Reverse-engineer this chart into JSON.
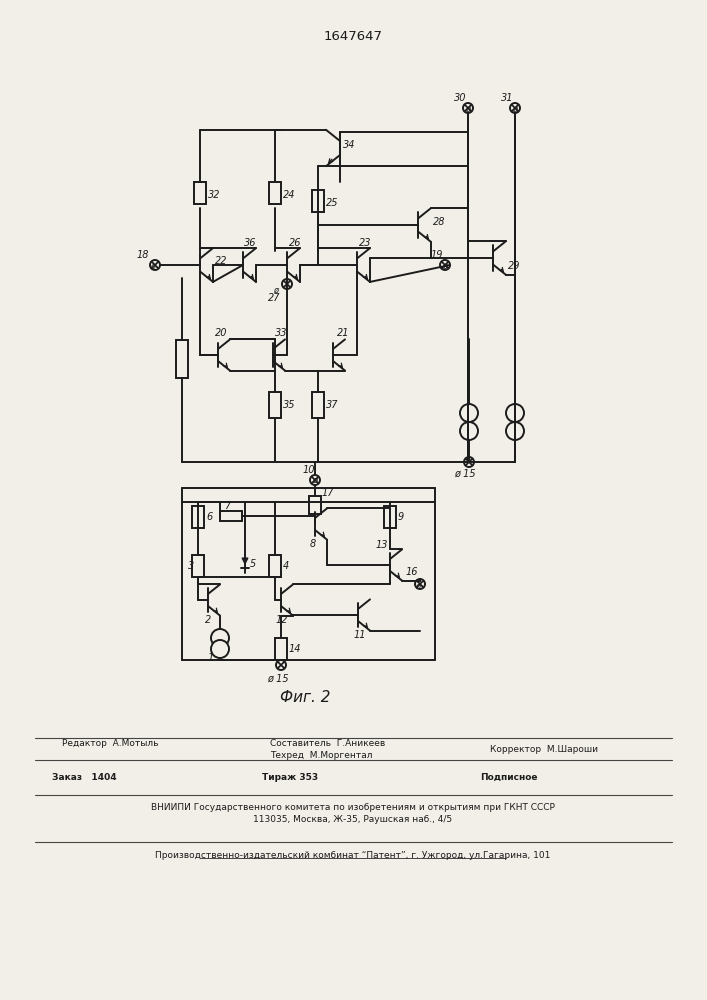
{
  "title": "1647647",
  "fig_caption": "Фиг. 2",
  "bg": "#f2efe8",
  "lc": "#1c1c1c",
  "editor": "Редактор  А.Мотыль",
  "composer": "Составитель  Г.Аникеев",
  "techred": "Техред  М.Моргентал",
  "corrector": "Корректор  М.Шароши",
  "order": "Заказ   1404",
  "tirazh": "Тираж 353",
  "podpisnoe": "Подписное",
  "vnipi": "ВНИИПИ Государственного комитета по изобретениям и открытиям при ГКНТ СССР",
  "address": "113035, Москва, Ж-35, Раушская наб., 4/5",
  "patent": "Производственно-издательский комбинат “Патент”, г. Ужгород, ул.Гагарина, 101"
}
